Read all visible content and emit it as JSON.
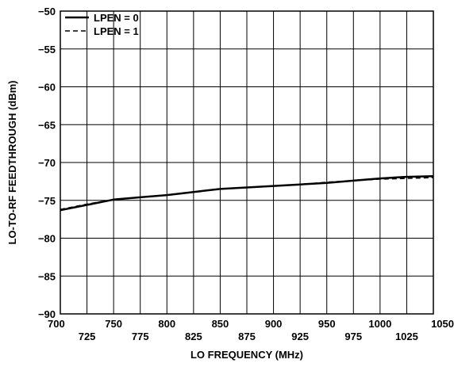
{
  "chart_data": {
    "type": "line",
    "title": "",
    "xlabel": "LO FREQUENCY (MHz)",
    "ylabel": "LO-TO-RF FEEDTHROUGH (dBm)",
    "xlim": [
      700,
      1050
    ],
    "ylim": [
      -90,
      -50
    ],
    "x_ticks": [
      "700",
      "725",
      "750",
      "775",
      "800",
      "825",
      "850",
      "875",
      "900",
      "925",
      "950",
      "975",
      "1000",
      "1025",
      "1050"
    ],
    "y_ticks": [
      "−50",
      "−55",
      "−60",
      "−65",
      "−70",
      "−75",
      "−80",
      "−85",
      "−90"
    ],
    "grid": true,
    "legend_position": "top-left",
    "x": [
      700,
      725,
      750,
      775,
      800,
      825,
      850,
      875,
      900,
      925,
      950,
      975,
      1000,
      1025,
      1050
    ],
    "series": [
      {
        "name": "LPEN = 0",
        "style": "solid",
        "values": [
          -76.3,
          -75.6,
          -74.9,
          -74.6,
          -74.3,
          -73.9,
          -73.5,
          -73.3,
          -73.1,
          -72.9,
          -72.7,
          -72.4,
          -72.1,
          -71.9,
          -71.8
        ]
      },
      {
        "name": "LPEN = 1",
        "style": "dashed",
        "values": [
          -76.2,
          -75.5,
          -74.9,
          -74.6,
          -74.3,
          -73.9,
          -73.5,
          -73.3,
          -73.1,
          -72.9,
          -72.6,
          -72.4,
          -72.2,
          -72.1,
          -72.0
        ]
      }
    ]
  }
}
